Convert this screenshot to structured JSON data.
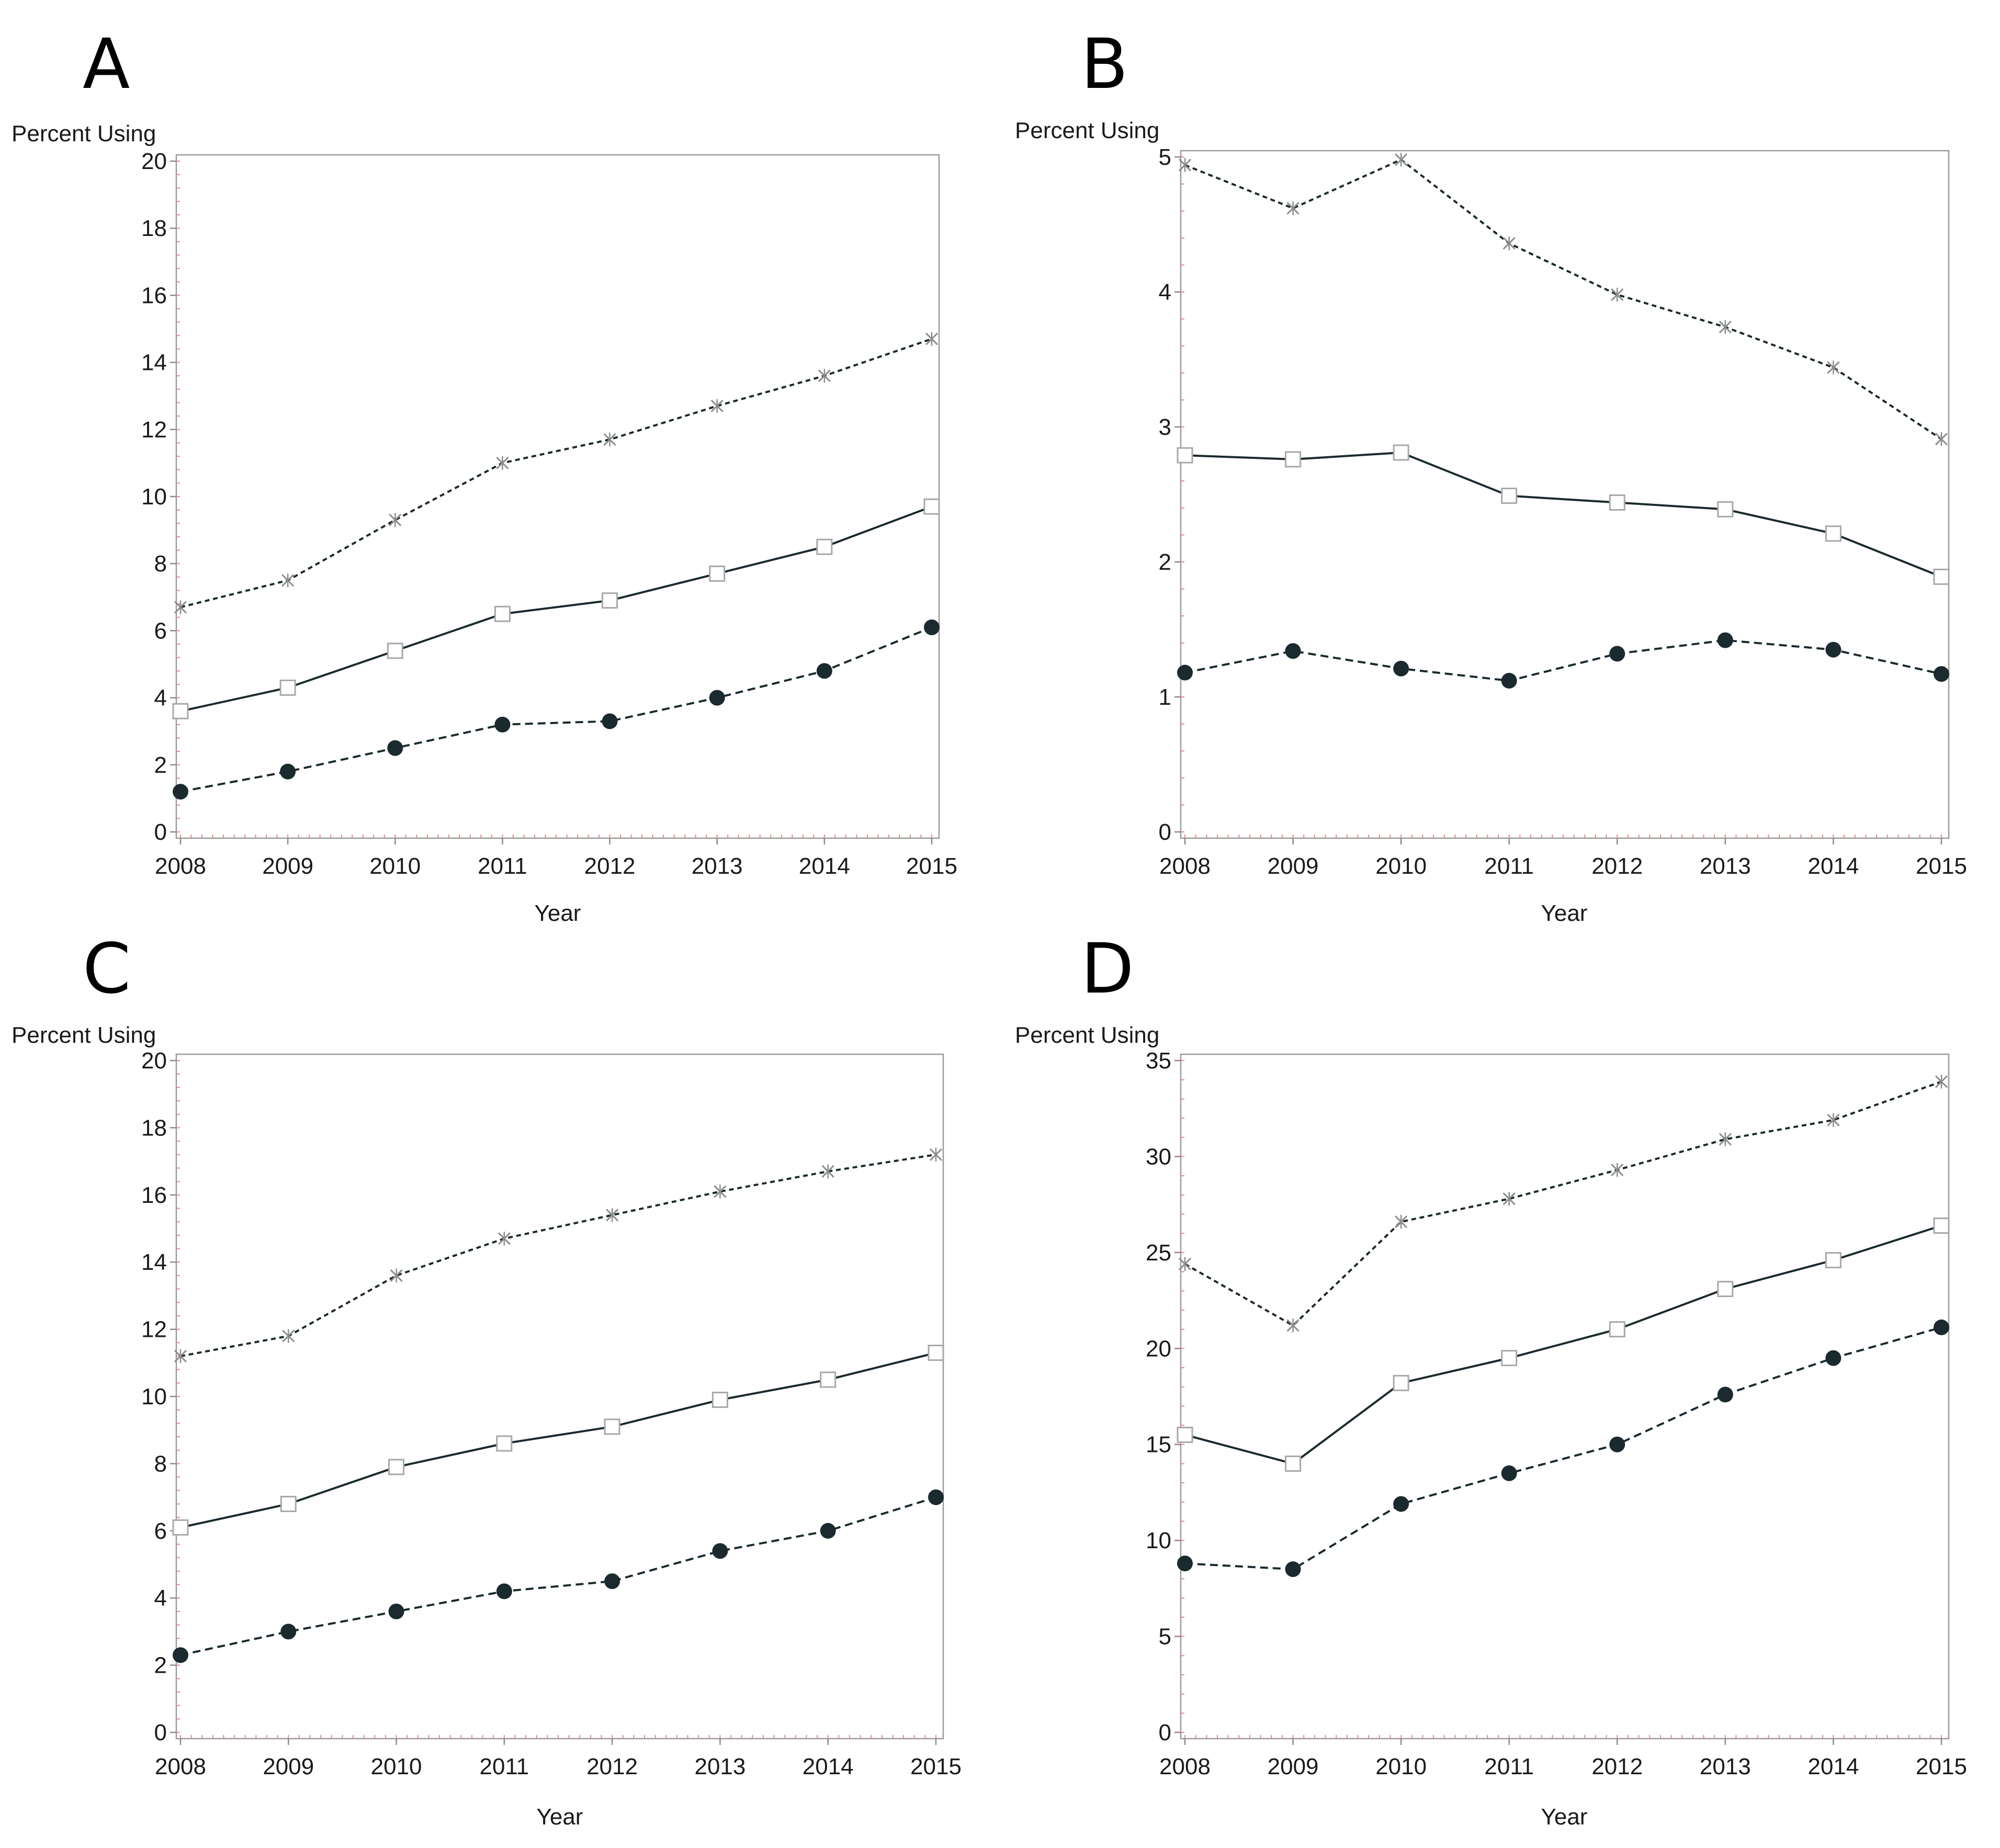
{
  "colors": {
    "line": "#1a2a2e",
    "marker_fill": "#1a2a2e",
    "square_marker": "#a8a8a8",
    "star_marker": "#8c8c8c",
    "frame": "#9a9a9a",
    "minor_tick": "#e08a8a"
  },
  "chart_data": [
    {
      "type": "line",
      "panel_label": "A",
      "ylabel": "Percent Using",
      "xlabel": "Year",
      "x": [
        2008,
        2009,
        2010,
        2011,
        2012,
        2013,
        2014,
        2015
      ],
      "xlim": [
        2008,
        2015
      ],
      "ylim": [
        0,
        20
      ],
      "yticks": [
        0,
        2,
        4,
        6,
        8,
        10,
        12,
        14,
        16,
        18,
        20
      ],
      "grid": false,
      "series": [
        {
          "marker": "star",
          "line": "dotted",
          "values": [
            6.7,
            7.5,
            9.3,
            11.0,
            11.7,
            12.7,
            13.6,
            14.7
          ]
        },
        {
          "marker": "square",
          "line": "solid",
          "values": [
            3.6,
            4.3,
            5.4,
            6.5,
            6.9,
            7.7,
            8.5,
            9.7
          ]
        },
        {
          "marker": "circle",
          "line": "dashed",
          "values": [
            1.2,
            1.8,
            2.5,
            3.2,
            3.3,
            4.0,
            4.8,
            6.1
          ]
        }
      ]
    },
    {
      "type": "line",
      "panel_label": "B",
      "ylabel": "Percent Using",
      "xlabel": "Year",
      "x": [
        2008,
        2009,
        2010,
        2011,
        2012,
        2013,
        2014,
        2015
      ],
      "xlim": [
        2008,
        2015
      ],
      "ylim": [
        0,
        5
      ],
      "yticks": [
        0,
        1,
        2,
        3,
        4,
        5
      ],
      "grid": false,
      "series": [
        {
          "marker": "star",
          "line": "dotted",
          "values": [
            4.94,
            4.62,
            4.98,
            4.36,
            3.98,
            3.74,
            3.44,
            2.91
          ]
        },
        {
          "marker": "square",
          "line": "solid",
          "values": [
            2.79,
            2.76,
            2.81,
            2.49,
            2.44,
            2.39,
            2.21,
            1.89
          ]
        },
        {
          "marker": "circle",
          "line": "dashed",
          "values": [
            1.18,
            1.34,
            1.21,
            1.12,
            1.32,
            1.42,
            1.35,
            1.17
          ]
        }
      ]
    },
    {
      "type": "line",
      "panel_label": "C",
      "ylabel": "Percent Using",
      "xlabel": "Year",
      "x": [
        2008,
        2009,
        2010,
        2011,
        2012,
        2013,
        2014,
        2015
      ],
      "xlim": [
        2008,
        2015
      ],
      "ylim": [
        0,
        20
      ],
      "yticks": [
        0,
        2,
        4,
        6,
        8,
        10,
        12,
        14,
        16,
        18,
        20
      ],
      "grid": false,
      "series": [
        {
          "marker": "star",
          "line": "dotted",
          "values": [
            11.2,
            11.8,
            13.6,
            14.7,
            15.4,
            16.1,
            16.7,
            17.2
          ]
        },
        {
          "marker": "square",
          "line": "solid",
          "values": [
            6.1,
            6.8,
            7.9,
            8.6,
            9.1,
            9.9,
            10.5,
            11.3
          ]
        },
        {
          "marker": "circle",
          "line": "dashed",
          "values": [
            2.3,
            3.0,
            3.6,
            4.2,
            4.5,
            5.4,
            6.0,
            7.0
          ]
        }
      ]
    },
    {
      "type": "line",
      "panel_label": "D",
      "ylabel": "Percent Using",
      "xlabel": "Year",
      "x": [
        2008,
        2009,
        2010,
        2011,
        2012,
        2013,
        2014,
        2015
      ],
      "xlim": [
        2008,
        2015
      ],
      "ylim": [
        0,
        35
      ],
      "yticks": [
        0,
        5,
        10,
        15,
        20,
        25,
        30,
        35
      ],
      "grid": false,
      "series": [
        {
          "marker": "star",
          "line": "dotted",
          "values": [
            24.4,
            21.2,
            26.6,
            27.8,
            29.3,
            30.9,
            31.9,
            33.9
          ]
        },
        {
          "marker": "square",
          "line": "solid",
          "values": [
            15.5,
            14.0,
            18.2,
            19.5,
            21.0,
            23.1,
            24.6,
            26.4
          ]
        },
        {
          "marker": "circle",
          "line": "dashed",
          "values": [
            8.8,
            8.5,
            11.9,
            13.5,
            15.0,
            17.6,
            19.5,
            21.1
          ]
        }
      ]
    }
  ]
}
